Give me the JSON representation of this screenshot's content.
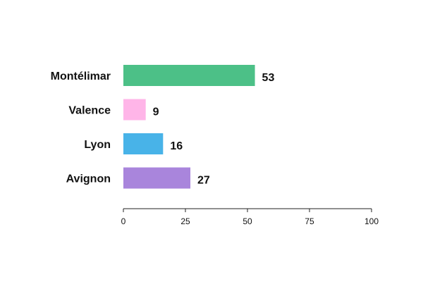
{
  "chart_data": {
    "type": "bar",
    "orientation": "horizontal",
    "title": "",
    "xlabel": "",
    "ylabel": "",
    "categories": [
      "Montélimar",
      "Valence",
      "Lyon",
      "Avignon"
    ],
    "values": [
      53,
      9,
      16,
      27
    ],
    "colors": [
      "#4cc087",
      "#ffb5e8",
      "#48b3e8",
      "#a985dc"
    ],
    "xlim": [
      0,
      100
    ],
    "xticks": [
      0,
      25,
      50,
      75,
      100
    ],
    "grid": false,
    "legend": "none"
  }
}
